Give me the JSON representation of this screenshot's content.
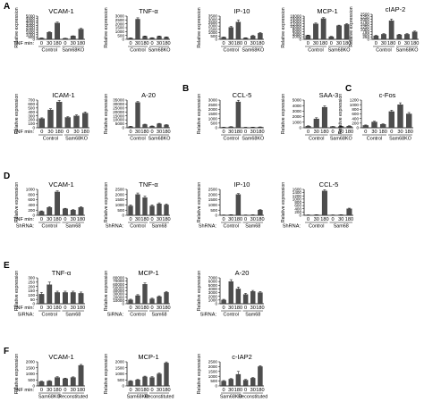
{
  "chart_data": [
    {
      "panel": "A",
      "type": "bar",
      "title": "VCAM-1",
      "ylabel": "Relative expression",
      "ylim": [
        0,
        5000
      ],
      "ticks": [
        0,
        500,
        1000,
        1500,
        2000,
        2500,
        3000,
        3500,
        4000,
        4500,
        5000
      ],
      "tick_labels": [
        "0",
        "500",
        "1000",
        "1500",
        "2000",
        "2500",
        "3000",
        "3500",
        "4000",
        "4500",
        "5000"
      ],
      "rowlabel": "TNF min:",
      "categories": [
        "0",
        "30",
        "180",
        "0",
        "30",
        "180"
      ],
      "groups": [
        "Control",
        "Sam68KO"
      ],
      "values": [
        250,
        1500,
        3500,
        200,
        700,
        2200
      ],
      "errors": [
        40,
        100,
        200,
        30,
        60,
        150
      ]
    },
    {
      "type": "bar",
      "title": "TNF-α",
      "ylabel": "Relative expression",
      "ylim": [
        0,
        3000
      ],
      "ticks": [
        0,
        500,
        1000,
        1500,
        2000,
        2500,
        3000
      ],
      "tick_labels": [
        "0",
        "500",
        "1000",
        "1500",
        "2000",
        "2500",
        "3000"
      ],
      "rowlabel": "",
      "categories": [
        "0",
        "30",
        "180",
        "0",
        "30",
        "180"
      ],
      "groups": [
        "Control",
        "Sam68KO"
      ],
      "values": [
        150,
        2600,
        380,
        180,
        380,
        280
      ],
      "errors": [
        30,
        180,
        50,
        30,
        50,
        40
      ]
    },
    {
      "type": "bar",
      "title": "IP-10",
      "ylabel": "Relative expression",
      "ylim": [
        0,
        3500
      ],
      "ticks": [
        0,
        500,
        1000,
        1500,
        2000,
        2500,
        3000,
        3500
      ],
      "tick_labels": [
        "0",
        "500",
        "1000",
        "1500",
        "2000",
        "2500",
        "3000",
        "3500"
      ],
      "rowlabel": "",
      "categories": [
        "0",
        "30",
        "180",
        "0",
        "30",
        "180"
      ],
      "groups": [
        "Control",
        "Sam68KO"
      ],
      "values": [
        300,
        1800,
        2600,
        200,
        500,
        900
      ],
      "errors": [
        50,
        150,
        300,
        40,
        80,
        120
      ]
    },
    {
      "type": "bar",
      "title": "MCP-1",
      "ylabel": "Relative expression",
      "ylim": [
        0,
        18000
      ],
      "ticks": [
        0,
        2000,
        4000,
        6000,
        8000,
        10000,
        12000,
        14000,
        16000,
        18000
      ],
      "tick_labels": [
        "0",
        "2000",
        "4000",
        "6000",
        "8000",
        "10000",
        "12000",
        "14000",
        "16000",
        "18000"
      ],
      "rowlabel": "",
      "categories": [
        "0",
        "30",
        "180",
        "0",
        "30",
        "180"
      ],
      "groups": [
        "Control",
        "Sam68KO"
      ],
      "values": [
        3000,
        12000,
        16000,
        2000,
        10500,
        11500
      ],
      "errors": [
        300,
        600,
        800,
        300,
        500,
        600
      ]
    },
    {
      "type": "bar",
      "title": "cIAP-2",
      "ylabel": "Relative expression",
      "ylim": [
        0,
        2500
      ],
      "ticks": [
        0,
        250,
        500,
        750,
        1000,
        1250,
        1500,
        1750,
        2000,
        2250,
        2500
      ],
      "tick_labels": [
        "0",
        "250",
        "500",
        "750",
        "1000",
        "1250",
        "1500",
        "1750",
        "2000",
        "2250",
        "2500"
      ],
      "rowlabel": "",
      "categories": [
        "0",
        "30",
        "180",
        "0",
        "30",
        "180"
      ],
      "groups": [
        "Control",
        "Sam68KO"
      ],
      "values": [
        350,
        500,
        1850,
        450,
        500,
        750
      ],
      "errors": [
        50,
        60,
        180,
        50,
        60,
        70
      ]
    },
    {
      "type": "bar",
      "title": "ICAM-1",
      "ylabel": "Relative expression",
      "ylim": [
        0,
        700
      ],
      "ticks": [
        0,
        100,
        200,
        300,
        400,
        500,
        600,
        700
      ],
      "tick_labels": [
        "0",
        "100",
        "200",
        "300",
        "400",
        "500",
        "600",
        "700"
      ],
      "rowlabel": "TNF min:",
      "categories": [
        "0",
        "30",
        "180",
        "0",
        "30",
        "180"
      ],
      "groups": [
        "Control",
        "Sam68KO"
      ],
      "values": [
        230,
        450,
        650,
        260,
        300,
        370
      ],
      "errors": [
        20,
        30,
        40,
        20,
        25,
        30
      ]
    },
    {
      "type": "bar",
      "title": "A-20",
      "ylabel": "Relative expression",
      "ylim": [
        0,
        35000
      ],
      "ticks": [
        0,
        5000,
        10000,
        15000,
        20000,
        25000,
        30000,
        35000
      ],
      "tick_labels": [
        "0",
        "5000",
        "10000",
        "15000",
        "20000",
        "25000",
        "30000",
        "35000"
      ],
      "rowlabel": "",
      "categories": [
        "0",
        "30",
        "180",
        "0",
        "30",
        "180"
      ],
      "groups": [
        "Control",
        "Sam68KO"
      ],
      "values": [
        1500,
        32000,
        4000,
        2000,
        5000,
        3500
      ],
      "errors": [
        300,
        1200,
        500,
        300,
        500,
        400
      ]
    },
    {
      "panel": "B",
      "type": "bar",
      "title": "CCL-5",
      "ylabel": "Relative expression",
      "ylim": [
        0,
        3000
      ],
      "ticks": [
        0,
        500,
        1000,
        1500,
        2000,
        2500,
        3000
      ],
      "tick_labels": [
        "0",
        "500",
        "1000",
        "1500",
        "2000",
        "2500",
        "3000"
      ],
      "rowlabel": "",
      "categories": [
        "0",
        "30",
        "180",
        "0",
        "30",
        "180"
      ],
      "groups": [
        "Control",
        "Sam68KO"
      ],
      "values": [
        50,
        100,
        2800,
        40,
        60,
        80
      ],
      "errors": [
        10,
        20,
        180,
        10,
        10,
        15
      ]
    },
    {
      "type": "bar",
      "title": "SAA-3",
      "ylabel": "Relative expression",
      "ylim": [
        0,
        5000
      ],
      "ticks": [
        0,
        1000,
        2000,
        3000,
        4000,
        5000
      ],
      "tick_labels": [
        "0",
        "1000",
        "2000",
        "3000",
        "4000",
        "5000"
      ],
      "rowlabel": "",
      "categories": [
        "0",
        "30",
        "180",
        "0",
        "30",
        "180"
      ],
      "groups": [
        "Control",
        "Sam68KO"
      ],
      "values": [
        300,
        1600,
        3700,
        200,
        250,
        300
      ],
      "errors": [
        50,
        200,
        250,
        40,
        40,
        50
      ]
    },
    {
      "panel": "C",
      "type": "bar",
      "title": "c-Fos",
      "ylabel": "Relative expression",
      "ylim": [
        0,
        1200
      ],
      "ticks": [
        0,
        200,
        400,
        600,
        800,
        1000,
        1200
      ],
      "tick_labels": [
        "0",
        "200",
        "400",
        "600",
        "800",
        "1000",
        "1200"
      ],
      "rowlabel": "",
      "categories": [
        "0",
        "30",
        "180",
        "0",
        "30",
        "180"
      ],
      "groups": [
        "Control",
        "Sam68KO"
      ],
      "values": [
        100,
        250,
        150,
        700,
        1000,
        600
      ],
      "errors": [
        20,
        30,
        20,
        60,
        80,
        60
      ]
    },
    {
      "panel": "D",
      "type": "bar",
      "title": "VCAM-1",
      "ylabel": "Relative expression",
      "ylim": [
        0,
        1000
      ],
      "ticks": [
        0,
        200,
        400,
        600,
        800,
        1000
      ],
      "tick_labels": [
        "0",
        "200",
        "400",
        "600",
        "800",
        "1000"
      ],
      "rowlabel": "TNF min:",
      "rowlabel2": "ShRNA:",
      "categories": [
        "0",
        "30",
        "180",
        "0",
        "30",
        "180"
      ],
      "groups": [
        "Control",
        "Sam68"
      ],
      "values": [
        150,
        300,
        900,
        250,
        200,
        300
      ],
      "errors": [
        20,
        30,
        40,
        20,
        20,
        30
      ]
    },
    {
      "type": "bar",
      "title": "TNF-α",
      "ylabel": "Relative expression",
      "ylim": [
        0,
        2500
      ],
      "ticks": [
        0,
        500,
        1000,
        1500,
        2000,
        2500
      ],
      "tick_labels": [
        "0",
        "500",
        "1000",
        "1500",
        "2000",
        "2500"
      ],
      "rowlabel": "",
      "rowlabel2": "ShRNA:",
      "categories": [
        "0",
        "30",
        "180",
        "0",
        "30",
        "180"
      ],
      "groups": [
        "Control",
        "Sam68"
      ],
      "values": [
        900,
        2000,
        1700,
        900,
        1100,
        1000
      ],
      "errors": [
        100,
        150,
        150,
        100,
        100,
        100
      ]
    },
    {
      "type": "bar",
      "title": "IP-10",
      "ylabel": "Relative expression",
      "ylim": [
        0,
        2500
      ],
      "ticks": [
        0,
        500,
        1000,
        1500,
        2000,
        2500
      ],
      "tick_labels": [
        "0",
        "500",
        "1000",
        "1500",
        "2000",
        "2500"
      ],
      "rowlabel": "",
      "rowlabel2": "ShRNA:",
      "categories": [
        "0",
        "30",
        "180",
        "0",
        "30",
        "180"
      ],
      "groups": [
        "Control",
        "Sam68"
      ],
      "values": [
        30,
        50,
        2000,
        30,
        40,
        500
      ],
      "errors": [
        5,
        10,
        100,
        5,
        5,
        50
      ]
    },
    {
      "type": "bar",
      "title": "CCL-5",
      "ylabel": "Relative expression",
      "ylim": [
        0,
        1600
      ],
      "ticks": [
        0,
        200,
        400,
        600,
        800,
        1000,
        1200,
        1400,
        1600
      ],
      "tick_labels": [
        "0",
        "200",
        "400",
        "600",
        "800",
        "1000",
        "1200",
        "1400",
        "1600"
      ],
      "rowlabel": "",
      "rowlabel2": "ShRNA:",
      "categories": [
        "0",
        "30",
        "180",
        "0",
        "30",
        "180"
      ],
      "groups": [
        "Control",
        "Sam68"
      ],
      "values": [
        20,
        30,
        1500,
        20,
        30,
        400
      ],
      "errors": [
        5,
        5,
        80,
        5,
        5,
        40
      ]
    },
    {
      "panel": "E",
      "type": "bar",
      "title": "TNF-α",
      "ylabel": "Relative expression",
      "ylim": [
        0,
        300
      ],
      "ticks": [
        0,
        50,
        100,
        150,
        200,
        250,
        300
      ],
      "tick_labels": [
        "0",
        "50",
        "100",
        "150",
        "200",
        "250",
        "300"
      ],
      "rowlabel": "TNF min:",
      "rowlabel2": "SiRNA:",
      "categories": [
        "0",
        "30",
        "180",
        "0",
        "30",
        "180"
      ],
      "groups": [
        "Control",
        "Sam68"
      ],
      "values": [
        110,
        220,
        130,
        130,
        130,
        120
      ],
      "errors": [
        20,
        30,
        15,
        15,
        15,
        15
      ]
    },
    {
      "type": "bar",
      "title": "MCP-1",
      "ylabel": "Relative expression",
      "ylim": [
        0,
        80000
      ],
      "ticks": [
        0,
        10000,
        20000,
        30000,
        40000,
        50000,
        60000,
        70000,
        80000
      ],
      "tick_labels": [
        "0",
        "10000",
        "20000",
        "30000",
        "40000",
        "50000",
        "60000",
        "70000",
        "80000"
      ],
      "rowlabel": "",
      "rowlabel2": "SiRNA:",
      "categories": [
        "0",
        "30",
        "180",
        "0",
        "30",
        "180"
      ],
      "groups": [
        "Control",
        "Sam68"
      ],
      "values": [
        12000,
        25000,
        60000,
        15000,
        22000,
        35000
      ],
      "errors": [
        2000,
        3000,
        4000,
        2000,
        2500,
        3000
      ]
    },
    {
      "type": "bar",
      "title": "A-20",
      "ylabel": "Relative expression",
      "ylim": [
        0,
        7000
      ],
      "ticks": [
        0,
        1000,
        2000,
        3000,
        4000,
        5000,
        6000,
        7000
      ],
      "tick_labels": [
        "0",
        "1000",
        "2000",
        "3000",
        "4000",
        "5000",
        "6000",
        "7000"
      ],
      "rowlabel": "",
      "rowlabel2": "SiRNA:",
      "categories": [
        "0",
        "30",
        "180",
        "0",
        "30",
        "180"
      ],
      "groups": [
        "Control",
        "Sam68"
      ],
      "values": [
        1000,
        6000,
        4000,
        2500,
        3300,
        3000
      ],
      "errors": [
        200,
        500,
        500,
        300,
        300,
        300
      ]
    },
    {
      "panel": "F",
      "type": "bar",
      "title": "VCAM-1",
      "ylabel": "Relative expression",
      "ylim": [
        0,
        2000
      ],
      "ticks": [
        0,
        500,
        1000,
        1500,
        2000
      ],
      "tick_labels": [
        "0",
        "500",
        "1000",
        "1500",
        "2000"
      ],
      "rowlabel": "TNF min:",
      "categories": [
        "0",
        "30",
        "180",
        "0",
        "30",
        "180"
      ],
      "groups": [
        "Sam68KO",
        "Reconstituted"
      ],
      "values": [
        350,
        400,
        700,
        600,
        700,
        1700
      ],
      "errors": [
        40,
        40,
        60,
        50,
        50,
        80
      ]
    },
    {
      "type": "bar",
      "title": "MCP-1",
      "ylabel": "Relative expression",
      "ylim": [
        0,
        2000
      ],
      "ticks": [
        0,
        500,
        1000,
        1500,
        2000
      ],
      "tick_labels": [
        "0",
        "500",
        "1000",
        "1500",
        "2000"
      ],
      "rowlabel": "",
      "categories": [
        "0",
        "30",
        "180",
        "0",
        "30",
        "180"
      ],
      "groups": [
        "Sam68KO",
        "Reconstituted"
      ],
      "values": [
        400,
        500,
        750,
        700,
        1000,
        1900
      ],
      "errors": [
        40,
        40,
        60,
        60,
        70,
        90
      ]
    },
    {
      "type": "bar",
      "title": "c-IAP2",
      "ylabel": "Relative expression",
      "ylim": [
        0,
        2500
      ],
      "ticks": [
        0,
        500,
        1000,
        1500,
        2000,
        2500
      ],
      "tick_labels": [
        "0",
        "500",
        "1000",
        "1500",
        "2000",
        "2500"
      ],
      "rowlabel": "",
      "categories": [
        "0",
        "30",
        "180",
        "0",
        "30",
        "180"
      ],
      "groups": [
        "Sam68KO",
        "Reconstituted"
      ],
      "values": [
        500,
        700,
        1200,
        600,
        800,
        2000
      ],
      "errors": [
        60,
        60,
        300,
        70,
        70,
        100
      ]
    }
  ]
}
